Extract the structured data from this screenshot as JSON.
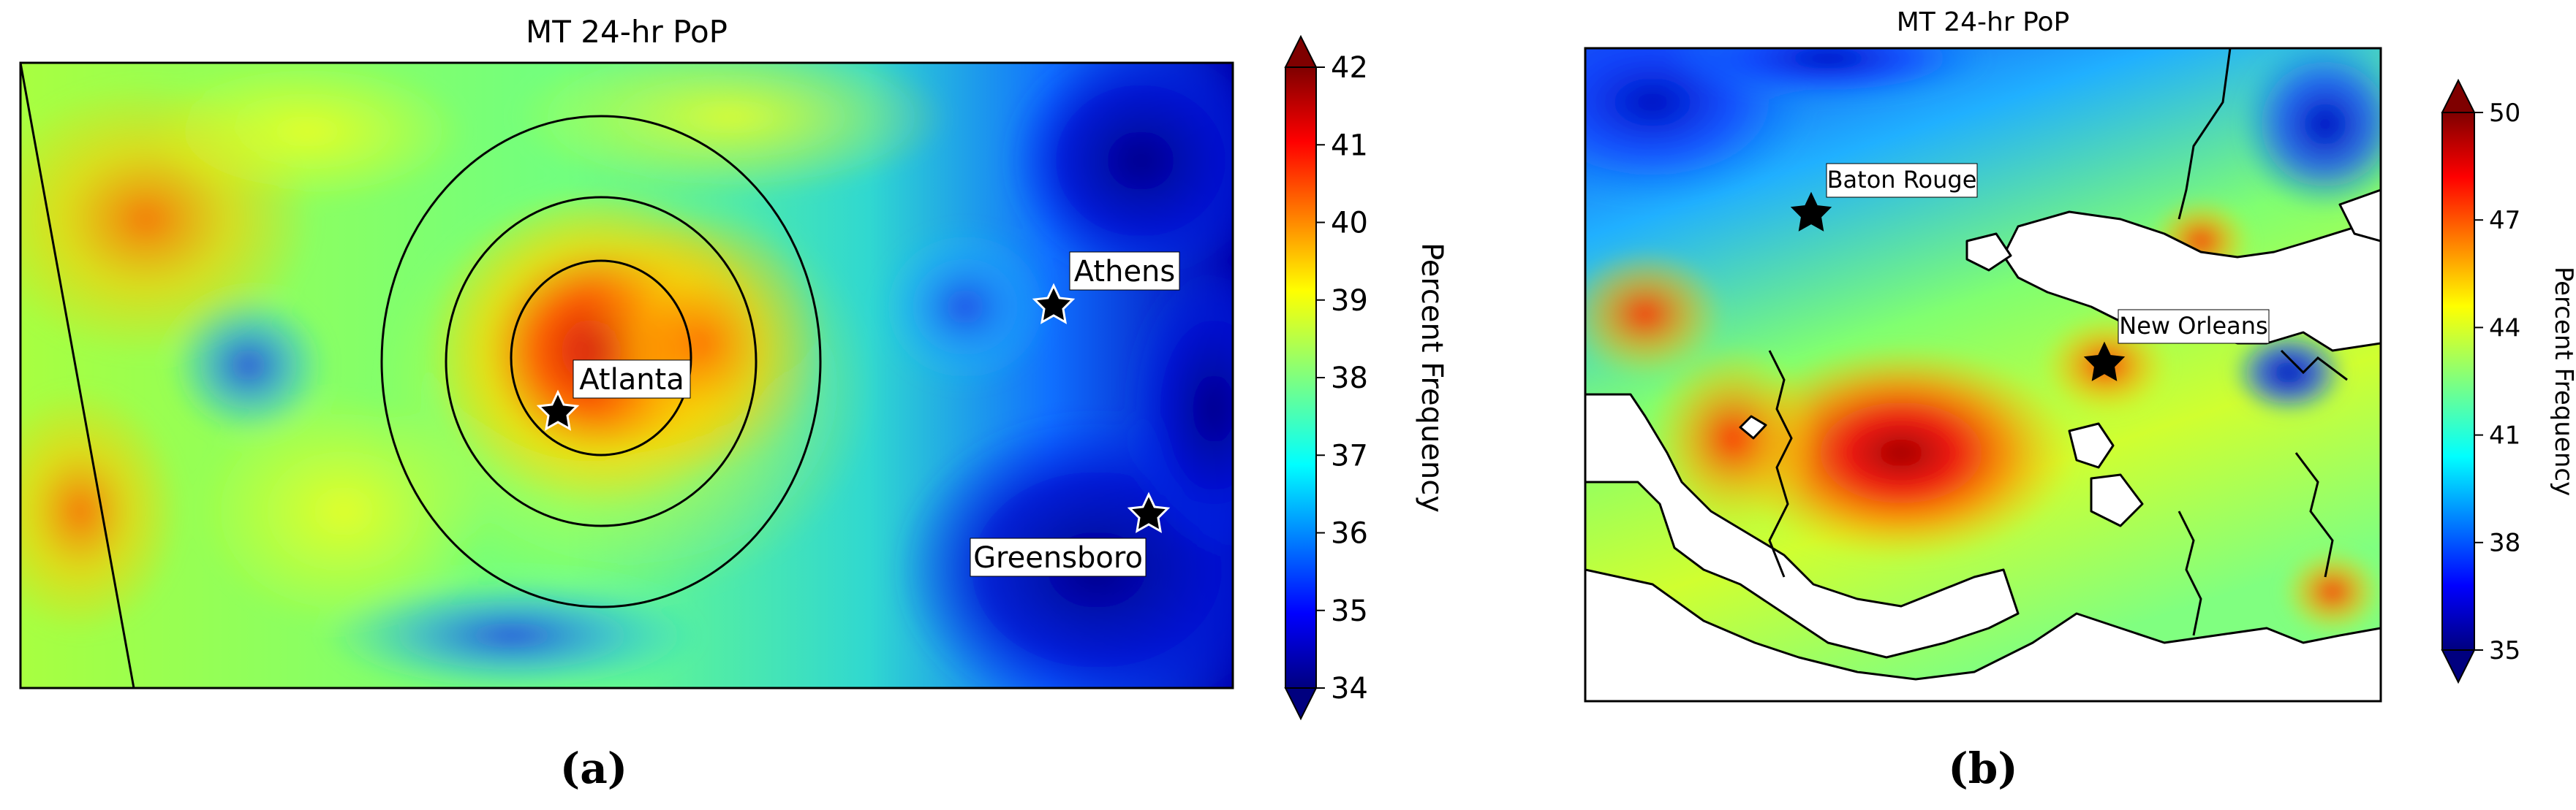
{
  "chart_data": [
    {
      "type": "heatmap",
      "title": "MT 24-hr PoP",
      "colorbar_label": "Percent Frequency",
      "colorbar_ticks": [
        34,
        35,
        36,
        37,
        38,
        39,
        40,
        41,
        42
      ],
      "vmin": 34,
      "vmax": 42,
      "extend": "both",
      "colormap": "jet",
      "panel_label": "(a)",
      "cities": [
        {
          "name": "Atlanta"
        },
        {
          "name": "Athens"
        },
        {
          "name": "Greensboro"
        }
      ],
      "range_rings": 3
    },
    {
      "type": "heatmap",
      "title": "MT 24-hr PoP",
      "colorbar_label": "Percent Frequency",
      "colorbar_ticks": [
        35,
        38,
        41,
        44,
        47,
        50
      ],
      "vmin": 35,
      "vmax": 50,
      "extend": "both",
      "colormap": "jet",
      "panel_label": "(b)",
      "cities": [
        {
          "name": "Baton Rouge"
        },
        {
          "name": "New Orleans"
        }
      ]
    }
  ]
}
